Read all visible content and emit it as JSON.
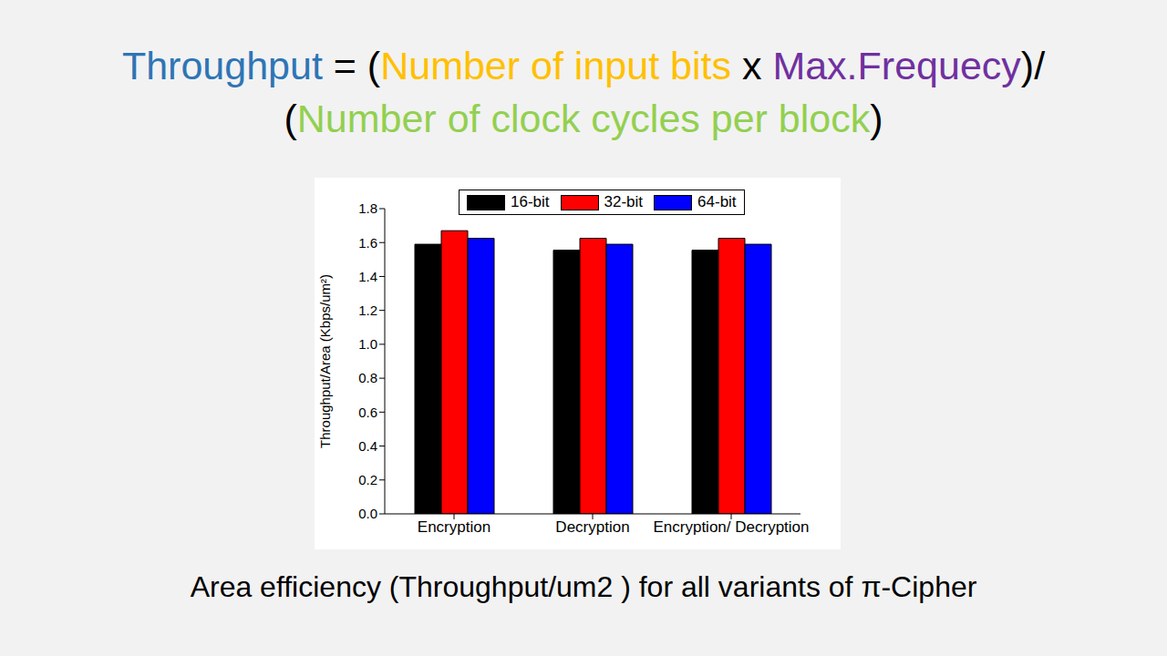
{
  "title_lines": [
    [
      {
        "text": "Throughput",
        "color": "#2e75b6"
      },
      {
        "text": " = (",
        "color": "#000000"
      },
      {
        "text": "Number of input bits",
        "color": "#ffc000"
      },
      {
        "text": " x ",
        "color": "#000000"
      },
      {
        "text": "Max.Frequecy",
        "color": "#7030a0"
      },
      {
        "text": ")/",
        "color": "#000000"
      }
    ],
    [
      {
        "text": "(",
        "color": "#000000"
      },
      {
        "text": "Number of clock cycles per block",
        "color": "#92d050"
      },
      {
        "text": ")",
        "color": "#000000"
      }
    ]
  ],
  "chart_data": {
    "type": "bar",
    "y_label": "Throughput/Area (Kbps/um²)",
    "categories": [
      "Encryption",
      "Decryption",
      "Encryption/ Decryption"
    ],
    "series": [
      {
        "name": "16-bit",
        "color": "#000000",
        "values": [
          1.59,
          1.555,
          1.555
        ]
      },
      {
        "name": "32-bit",
        "color": "#ff0000",
        "values": [
          1.67,
          1.625,
          1.625
        ]
      },
      {
        "name": "64-bit",
        "color": "#0000ff",
        "values": [
          1.625,
          1.59,
          1.59
        ]
      }
    ],
    "ylim": [
      0,
      1.8
    ],
    "yticks": [
      {
        "value": 0,
        "label": "0.0"
      },
      0.2,
      0.4,
      0.6,
      0.8,
      {
        "value": 1,
        "label": "1.0"
      },
      1.2,
      1.4,
      1.6,
      1.8
    ],
    "legend": "top",
    "grid": false
  },
  "caption": "Area efficiency (Throughput/um2 ) for all variants of π-Cipher"
}
